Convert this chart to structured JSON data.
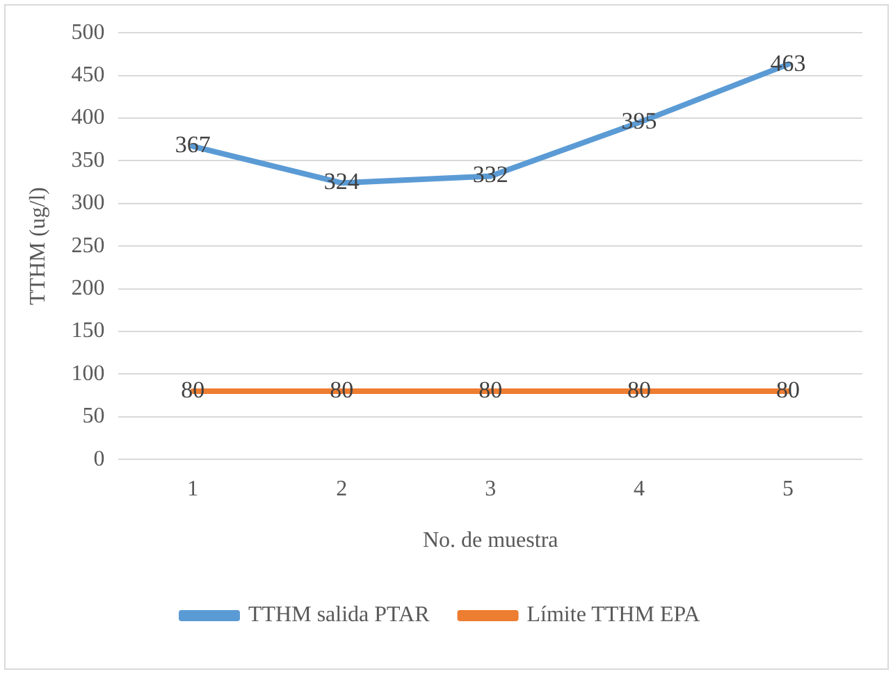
{
  "chart_data": {
    "type": "line",
    "xlabel": "No. de muestra",
    "ylabel": "TTHM (ug/l)",
    "categories": [
      "1",
      "2",
      "3",
      "4",
      "5"
    ],
    "series": [
      {
        "name": "TTHM salida PTAR",
        "color": "#5b9bd5",
        "values": [
          367,
          324,
          332,
          395,
          463
        ]
      },
      {
        "name": "Límite TTHM EPA",
        "color": "#ed7d31",
        "values": [
          80,
          80,
          80,
          80,
          80
        ]
      }
    ],
    "ylim": [
      0,
      500
    ],
    "yticks": [
      0,
      50,
      100,
      150,
      200,
      250,
      300,
      350,
      400,
      450,
      500
    ],
    "grid": "y",
    "legend": "bottom",
    "data_labels": true,
    "marker": "none",
    "line_style": "solid"
  }
}
